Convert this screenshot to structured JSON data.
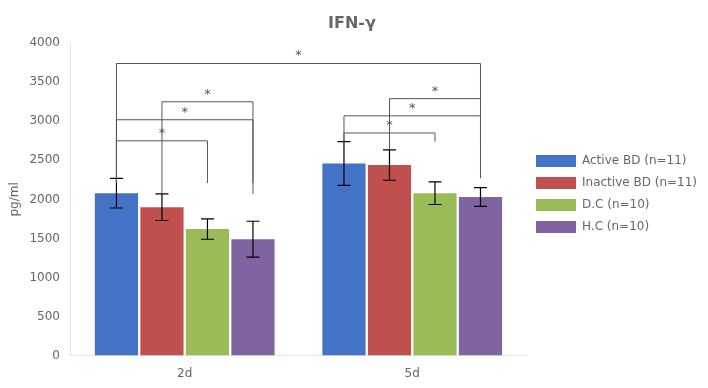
{
  "chart_data": {
    "type": "bar",
    "title": "IFN-γ",
    "ylabel": "pg/ml",
    "categories": [
      "2d",
      "5d"
    ],
    "series": [
      {
        "name": "Active BD (n=11)",
        "color": "#4472C4",
        "values": [
          2080,
          2460
        ],
        "errors": [
          190,
          280
        ]
      },
      {
        "name": "Inactive BD (n=11)",
        "color": "#C0504D",
        "values": [
          1900,
          2440
        ],
        "errors": [
          170,
          195
        ]
      },
      {
        "name": "D.C (n=10)",
        "color": "#9BBB59",
        "values": [
          1620,
          2080
        ],
        "errors": [
          130,
          145
        ]
      },
      {
        "name": "H.C (n=10)",
        "color": "#8064A2",
        "values": [
          1490,
          2030
        ],
        "errors": [
          230,
          120
        ]
      }
    ],
    "ylim": [
      0,
      4000
    ],
    "yticks": [
      0,
      500,
      1000,
      1500,
      2000,
      2500,
      3000,
      3500,
      4000
    ],
    "grid": false,
    "legend": "right",
    "annotations": [
      {
        "text": "*",
        "from": [
          "2d",
          "Active BD (n=11)"
        ],
        "to": [
          "2d",
          "D.C (n=10)"
        ],
        "y": 2750,
        "y_bottom": 2210
      },
      {
        "text": "*",
        "from": [
          "2d",
          "Active BD (n=11)"
        ],
        "to": [
          "2d",
          "H.C (n=10)"
        ],
        "y": 3020,
        "y_bottom": 2210
      },
      {
        "text": "*",
        "from": [
          "2d",
          "Inactive BD (n=11)"
        ],
        "to": [
          "2d",
          "H.C (n=10)"
        ],
        "y": 3250,
        "y_bottom": 2070
      },
      {
        "text": "*",
        "from": [
          "5d",
          "Active BD (n=11)"
        ],
        "to": [
          "5d",
          "D.C (n=10)"
        ],
        "y": 2850,
        "y_bottom": 2740
      },
      {
        "text": "*",
        "from": [
          "5d",
          "Active BD (n=11)"
        ],
        "to": [
          "5d",
          "H.C (n=10)"
        ],
        "y": 3070,
        "y_bottom": 2740
      },
      {
        "text": "*",
        "from": [
          "5d",
          "Inactive BD (n=11)"
        ],
        "to": [
          "5d",
          "H.C (n=10)"
        ],
        "y": 3290,
        "y_bottom": 2635
      },
      {
        "text": "*",
        "from": [
          "2d",
          "Active BD (n=11)"
        ],
        "to": [
          "5d",
          "H.C (n=10)"
        ],
        "y": 3740,
        "y_bottom": 2270
      }
    ]
  }
}
